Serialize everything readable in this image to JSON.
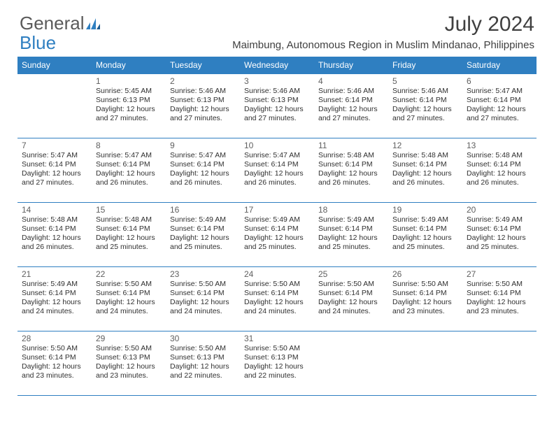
{
  "brand": {
    "text1": "General",
    "text2": "Blue",
    "text_color": "#5a5a5a",
    "accent_color": "#2f7fc1"
  },
  "title": "July 2024",
  "subtitle": "Maimbung, Autonomous Region in Muslim Mindanao, Philippines",
  "colors": {
    "header_bg": "#2f7fc1",
    "header_text": "#ffffff",
    "border": "#2f7fc1",
    "background": "#ffffff",
    "body_text": "#303030"
  },
  "day_headers": [
    "Sunday",
    "Monday",
    "Tuesday",
    "Wednesday",
    "Thursday",
    "Friday",
    "Saturday"
  ],
  "weeks": [
    [
      {
        "n": "",
        "sr": "",
        "ss": "",
        "dl": ""
      },
      {
        "n": "1",
        "sr": "Sunrise: 5:45 AM",
        "ss": "Sunset: 6:13 PM",
        "dl": "Daylight: 12 hours and 27 minutes."
      },
      {
        "n": "2",
        "sr": "Sunrise: 5:46 AM",
        "ss": "Sunset: 6:13 PM",
        "dl": "Daylight: 12 hours and 27 minutes."
      },
      {
        "n": "3",
        "sr": "Sunrise: 5:46 AM",
        "ss": "Sunset: 6:13 PM",
        "dl": "Daylight: 12 hours and 27 minutes."
      },
      {
        "n": "4",
        "sr": "Sunrise: 5:46 AM",
        "ss": "Sunset: 6:14 PM",
        "dl": "Daylight: 12 hours and 27 minutes."
      },
      {
        "n": "5",
        "sr": "Sunrise: 5:46 AM",
        "ss": "Sunset: 6:14 PM",
        "dl": "Daylight: 12 hours and 27 minutes."
      },
      {
        "n": "6",
        "sr": "Sunrise: 5:47 AM",
        "ss": "Sunset: 6:14 PM",
        "dl": "Daylight: 12 hours and 27 minutes."
      }
    ],
    [
      {
        "n": "7",
        "sr": "Sunrise: 5:47 AM",
        "ss": "Sunset: 6:14 PM",
        "dl": "Daylight: 12 hours and 27 minutes."
      },
      {
        "n": "8",
        "sr": "Sunrise: 5:47 AM",
        "ss": "Sunset: 6:14 PM",
        "dl": "Daylight: 12 hours and 26 minutes."
      },
      {
        "n": "9",
        "sr": "Sunrise: 5:47 AM",
        "ss": "Sunset: 6:14 PM",
        "dl": "Daylight: 12 hours and 26 minutes."
      },
      {
        "n": "10",
        "sr": "Sunrise: 5:47 AM",
        "ss": "Sunset: 6:14 PM",
        "dl": "Daylight: 12 hours and 26 minutes."
      },
      {
        "n": "11",
        "sr": "Sunrise: 5:48 AM",
        "ss": "Sunset: 6:14 PM",
        "dl": "Daylight: 12 hours and 26 minutes."
      },
      {
        "n": "12",
        "sr": "Sunrise: 5:48 AM",
        "ss": "Sunset: 6:14 PM",
        "dl": "Daylight: 12 hours and 26 minutes."
      },
      {
        "n": "13",
        "sr": "Sunrise: 5:48 AM",
        "ss": "Sunset: 6:14 PM",
        "dl": "Daylight: 12 hours and 26 minutes."
      }
    ],
    [
      {
        "n": "14",
        "sr": "Sunrise: 5:48 AM",
        "ss": "Sunset: 6:14 PM",
        "dl": "Daylight: 12 hours and 26 minutes."
      },
      {
        "n": "15",
        "sr": "Sunrise: 5:48 AM",
        "ss": "Sunset: 6:14 PM",
        "dl": "Daylight: 12 hours and 25 minutes."
      },
      {
        "n": "16",
        "sr": "Sunrise: 5:49 AM",
        "ss": "Sunset: 6:14 PM",
        "dl": "Daylight: 12 hours and 25 minutes."
      },
      {
        "n": "17",
        "sr": "Sunrise: 5:49 AM",
        "ss": "Sunset: 6:14 PM",
        "dl": "Daylight: 12 hours and 25 minutes."
      },
      {
        "n": "18",
        "sr": "Sunrise: 5:49 AM",
        "ss": "Sunset: 6:14 PM",
        "dl": "Daylight: 12 hours and 25 minutes."
      },
      {
        "n": "19",
        "sr": "Sunrise: 5:49 AM",
        "ss": "Sunset: 6:14 PM",
        "dl": "Daylight: 12 hours and 25 minutes."
      },
      {
        "n": "20",
        "sr": "Sunrise: 5:49 AM",
        "ss": "Sunset: 6:14 PM",
        "dl": "Daylight: 12 hours and 25 minutes."
      }
    ],
    [
      {
        "n": "21",
        "sr": "Sunrise: 5:49 AM",
        "ss": "Sunset: 6:14 PM",
        "dl": "Daylight: 12 hours and 24 minutes."
      },
      {
        "n": "22",
        "sr": "Sunrise: 5:50 AM",
        "ss": "Sunset: 6:14 PM",
        "dl": "Daylight: 12 hours and 24 minutes."
      },
      {
        "n": "23",
        "sr": "Sunrise: 5:50 AM",
        "ss": "Sunset: 6:14 PM",
        "dl": "Daylight: 12 hours and 24 minutes."
      },
      {
        "n": "24",
        "sr": "Sunrise: 5:50 AM",
        "ss": "Sunset: 6:14 PM",
        "dl": "Daylight: 12 hours and 24 minutes."
      },
      {
        "n": "25",
        "sr": "Sunrise: 5:50 AM",
        "ss": "Sunset: 6:14 PM",
        "dl": "Daylight: 12 hours and 24 minutes."
      },
      {
        "n": "26",
        "sr": "Sunrise: 5:50 AM",
        "ss": "Sunset: 6:14 PM",
        "dl": "Daylight: 12 hours and 23 minutes."
      },
      {
        "n": "27",
        "sr": "Sunrise: 5:50 AM",
        "ss": "Sunset: 6:14 PM",
        "dl": "Daylight: 12 hours and 23 minutes."
      }
    ],
    [
      {
        "n": "28",
        "sr": "Sunrise: 5:50 AM",
        "ss": "Sunset: 6:14 PM",
        "dl": "Daylight: 12 hours and 23 minutes."
      },
      {
        "n": "29",
        "sr": "Sunrise: 5:50 AM",
        "ss": "Sunset: 6:13 PM",
        "dl": "Daylight: 12 hours and 23 minutes."
      },
      {
        "n": "30",
        "sr": "Sunrise: 5:50 AM",
        "ss": "Sunset: 6:13 PM",
        "dl": "Daylight: 12 hours and 22 minutes."
      },
      {
        "n": "31",
        "sr": "Sunrise: 5:50 AM",
        "ss": "Sunset: 6:13 PM",
        "dl": "Daylight: 12 hours and 22 minutes."
      },
      {
        "n": "",
        "sr": "",
        "ss": "",
        "dl": ""
      },
      {
        "n": "",
        "sr": "",
        "ss": "",
        "dl": ""
      },
      {
        "n": "",
        "sr": "",
        "ss": "",
        "dl": ""
      }
    ]
  ]
}
